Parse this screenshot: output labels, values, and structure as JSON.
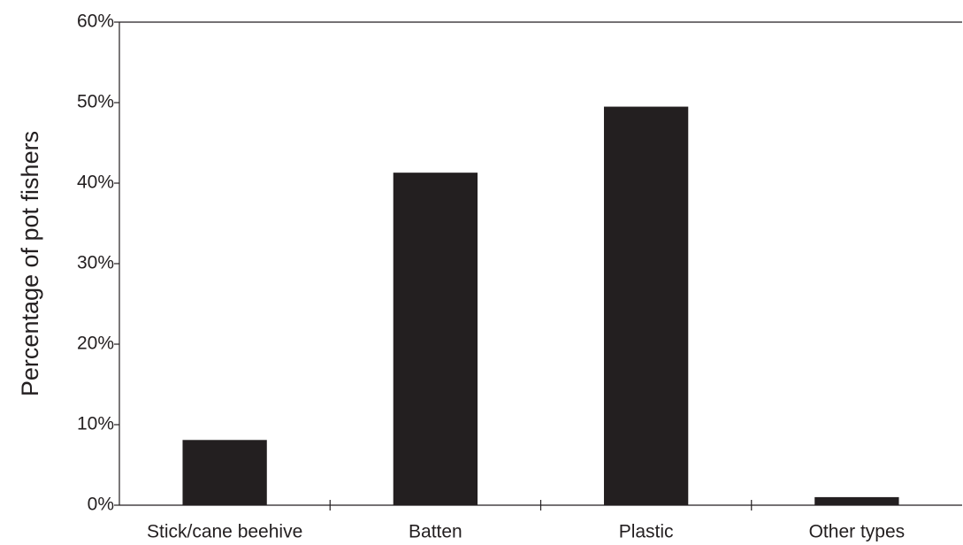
{
  "chart_data": {
    "type": "bar",
    "y_label": "Percentage of pot fishers",
    "categories": [
      "Stick/cane beehive",
      "Batten",
      "Plastic",
      "Other types"
    ],
    "values": [
      8.1,
      41.3,
      49.5,
      1.0
    ],
    "color": "#231f20",
    "ylim": [
      0,
      60
    ],
    "yticks": [
      {
        "value": 0,
        "label": "0%"
      },
      {
        "value": 10,
        "label": "10%"
      },
      {
        "value": 20,
        "label": "20%"
      },
      {
        "value": 30,
        "label": "30%"
      },
      {
        "value": 40,
        "label": "40%"
      },
      {
        "value": 50,
        "label": "50%"
      },
      {
        "value": 60,
        "label": "60%"
      }
    ]
  }
}
